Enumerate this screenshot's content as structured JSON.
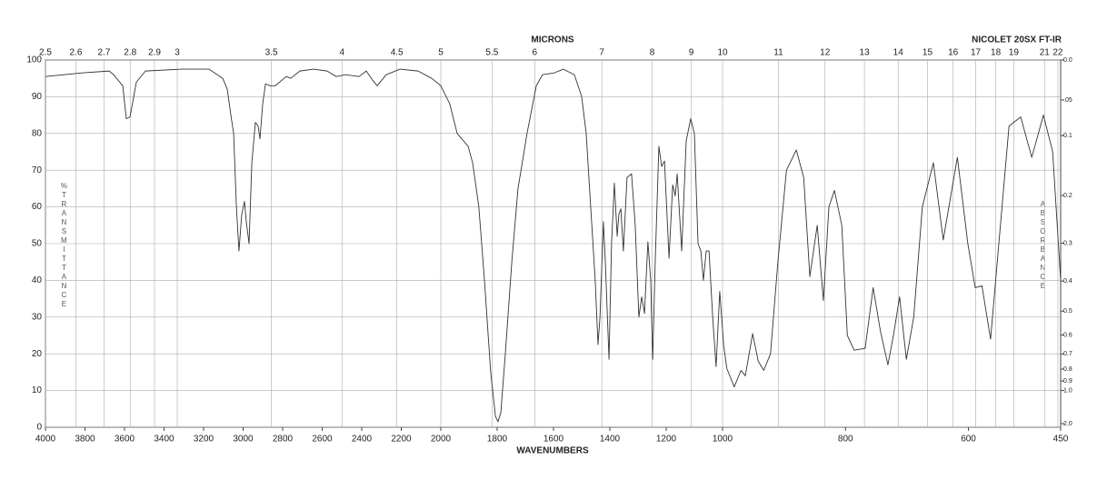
{
  "chart_data": {
    "type": "line",
    "top_title": "MICRONS",
    "instrument": "NICOLET 20SX FT-IR",
    "xlabel": "WAVENUMBERS",
    "ylabel": "%TRANSMITTANCE",
    "y2label": "ABSORBANCE",
    "xlim": [
      4000,
      450
    ],
    "x_breaks": [
      2000,
      1000
    ],
    "xticks": [
      4000,
      3800,
      3600,
      3400,
      3200,
      3000,
      2800,
      2600,
      2400,
      2200,
      2000,
      1800,
      1600,
      1400,
      1200,
      1000,
      800,
      600,
      450
    ],
    "x2scale": "microns",
    "x2ticks": [
      2.5,
      2.6,
      2.7,
      2.8,
      2.9,
      3,
      3.5,
      4,
      4.5,
      5,
      5.5,
      6,
      7,
      8,
      9,
      10,
      11,
      12,
      13,
      14,
      15,
      16,
      17,
      18,
      19,
      21,
      22
    ],
    "ylim": [
      0,
      100
    ],
    "yticks": [
      0,
      10,
      20,
      30,
      40,
      50,
      60,
      70,
      80,
      90,
      100
    ],
    "y2scale": "absorbance",
    "y2ticks": [
      {
        "value": 0,
        "label": "0.0"
      },
      {
        "value": 0.05,
        "label": ".05"
      },
      0.1,
      0.2,
      0.3,
      0.4,
      0.5,
      0.6,
      0.7,
      0.8,
      0.9,
      {
        "value": 1,
        "label": "1.0"
      },
      {
        "value": 2,
        "label": "2.0"
      }
    ],
    "grid": true,
    "color": "#333333",
    "x": [
      4000,
      3816,
      3678,
      3655,
      3609,
      3591,
      3572,
      3540,
      3494,
      3310,
      3172,
      3103,
      3080,
      3062,
      3048,
      3034,
      3021,
      3007,
      2993,
      2984,
      2970,
      2956,
      2938,
      2924,
      2915,
      2901,
      2887,
      2864,
      2837,
      2782,
      2759,
      2713,
      2644,
      2575,
      2529,
      2483,
      2414,
      2377,
      2345,
      2322,
      2276,
      2207,
      2115,
      2046,
      2000,
      1968,
      1942,
      1903,
      1887,
      1865,
      1845,
      1823,
      1806,
      1797,
      1787,
      1771,
      1748,
      1726,
      1694,
      1661,
      1639,
      1597,
      1565,
      1526,
      1500,
      1484,
      1468,
      1452,
      1442,
      1435,
      1423,
      1416,
      1403,
      1394,
      1384,
      1374,
      1368,
      1361,
      1352,
      1339,
      1323,
      1310,
      1297,
      1287,
      1277,
      1265,
      1255,
      1248,
      1239,
      1226,
      1216,
      1206,
      1190,
      1177,
      1168,
      1161,
      1145,
      1129,
      1113,
      1100,
      1087,
      1077,
      1068,
      1058,
      1048,
      1035,
      1023,
      1010,
      998,
      993,
      981,
      970,
      963,
      951,
      942,
      933,
      922,
      910,
      896,
      880,
      868,
      858,
      846,
      836,
      827,
      818,
      806,
      797,
      786,
      768,
      755,
      743,
      731,
      722,
      712,
      701,
      689,
      675,
      657,
      641,
      618,
      601,
      589,
      578,
      564,
      534,
      515,
      497,
      478,
      463,
      450
    ],
    "values": [
      95.5,
      96.5,
      97,
      96,
      93,
      84,
      84.5,
      94,
      97,
      97.5,
      97.5,
      95,
      92,
      85,
      80,
      60,
      48,
      58,
      61.5,
      56,
      50,
      72,
      83,
      82,
      78.5,
      88,
      93.5,
      93,
      93,
      95.5,
      95,
      97,
      97.5,
      97,
      95.5,
      96,
      95.5,
      97,
      94.5,
      93,
      96,
      97.5,
      97,
      95,
      93,
      88,
      80,
      76.5,
      72,
      60,
      40,
      15,
      3,
      1.5,
      4,
      20,
      45,
      65,
      80,
      93,
      96,
      96.5,
      97.5,
      96,
      90,
      80,
      60,
      40,
      22.5,
      30,
      56,
      45,
      18.5,
      50,
      66.5,
      52,
      58,
      59.5,
      48,
      68,
      69,
      55,
      30,
      35.5,
      31,
      50.5,
      40,
      18.5,
      45,
      76.5,
      71,
      72.5,
      46,
      66,
      63,
      69,
      48,
      78,
      84,
      80,
      50,
      48,
      40,
      48,
      48,
      30,
      16.5,
      37,
      22,
      16,
      11,
      15.5,
      14,
      25.5,
      18,
      15.5,
      20,
      45,
      70,
      75.5,
      68,
      41,
      55,
      34.5,
      60,
      64.5,
      55,
      25,
      21,
      21.5,
      38,
      26,
      17,
      25,
      35.5,
      18.5,
      30,
      60,
      72,
      51,
      73.5,
      50,
      38,
      38.5,
      24,
      82,
      84.5,
      73.5,
      85,
      75,
      40
    ]
  }
}
